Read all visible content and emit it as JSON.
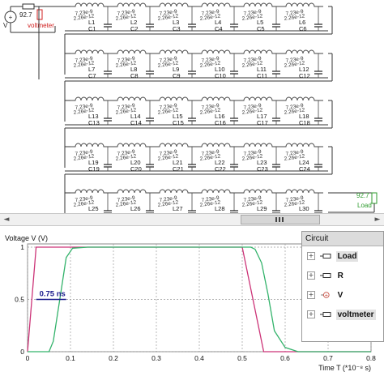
{
  "schematic": {
    "source_label": "V",
    "meter_value": "92.7",
    "meter_name": "voltmeter",
    "inductor_value": "7.23e-9",
    "capacitor_value": "2.26e-12",
    "load_value": "92.7",
    "load_label": "Load",
    "rows": [
      {
        "inductors": [
          "L1",
          "L2",
          "L3",
          "L4",
          "L5",
          "L6"
        ],
        "capacitors": [
          "C1",
          "C2",
          "C3",
          "C4",
          "C5",
          "C6"
        ]
      },
      {
        "inductors": [
          "L7",
          "L8",
          "L9",
          "L10",
          "L11",
          "L12"
        ],
        "capacitors": [
          "C7",
          "C8",
          "C9",
          "C10",
          "C11",
          "C12"
        ]
      },
      {
        "inductors": [
          "L13",
          "L14",
          "L15",
          "L16",
          "L17",
          "L18"
        ],
        "capacitors": [
          "C13",
          "C14",
          "C15",
          "C16",
          "C17",
          "C18"
        ]
      },
      {
        "inductors": [
          "L19",
          "L20",
          "L21",
          "L22",
          "L23",
          "L24"
        ],
        "capacitors": [
          "C19",
          "C20",
          "C21",
          "C22",
          "C23",
          "C24"
        ]
      },
      {
        "inductors": [
          "L25",
          "L26",
          "L27",
          "L28",
          "L29",
          "L30"
        ],
        "capacitors": [
          "C25",
          "C26",
          "C27",
          "C28",
          "C29",
          "C30"
        ]
      }
    ]
  },
  "scrollbar": {
    "left_arrow": "◄",
    "right_arrow": "►"
  },
  "chart_data": {
    "type": "line",
    "ylabel": "Voltage V (V)",
    "xlabel": "Time T (*10⁻⁸ s)",
    "xlim": [
      0,
      0.8
    ],
    "ylim": [
      0,
      1
    ],
    "x_ticks": [
      "0",
      "0.1",
      "0.2",
      "0.3",
      "0.4",
      "0.5",
      "0.6",
      "0.7",
      "0.8"
    ],
    "y_ticks": [
      "0",
      "0.5",
      "1"
    ],
    "grid": true,
    "annotation": "0.75 ns",
    "series": [
      {
        "color": "#cc3377",
        "x": [
          0,
          0.02,
          0.5,
          0.55,
          0.8
        ],
        "y": [
          0,
          1,
          1,
          0,
          0
        ]
      },
      {
        "color": "#33b36b",
        "x": [
          0,
          0.05,
          0.06,
          0.075,
          0.09,
          0.105,
          0.14,
          0.2,
          0.52,
          0.53,
          0.545,
          0.56,
          0.575,
          0.6,
          0.63,
          0.66,
          0.7,
          0.8
        ],
        "y": [
          0,
          0.0,
          0.1,
          0.5,
          0.9,
          0.99,
          1.0,
          1.0,
          1.0,
          0.98,
          0.85,
          0.55,
          0.2,
          0.04,
          0.0,
          0.0,
          0.0,
          0.0
        ]
      }
    ]
  },
  "tree": {
    "header": "Circuit",
    "items": [
      {
        "label": "Load",
        "expander": "+",
        "selected": true
      },
      {
        "label": "R",
        "expander": "+",
        "selected": false
      },
      {
        "label": "V",
        "expander": "+",
        "selected": false
      },
      {
        "label": "voltmeter",
        "expander": "+",
        "selected": true
      }
    ]
  }
}
